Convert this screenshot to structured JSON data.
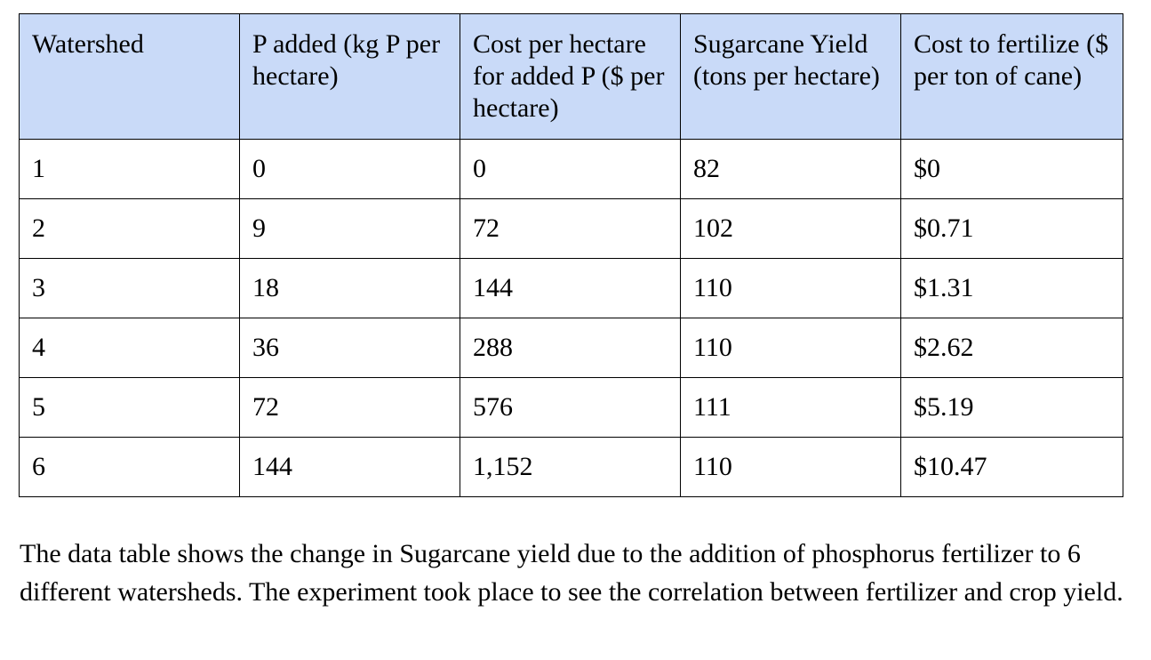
{
  "table": {
    "headers": [
      "Watershed",
      "P added (kg P per hectare)",
      "Cost per hectare for added P ($ per hectare)",
      "Sugarcane Yield (tons per hectare)",
      "Cost to fertilize ($ per ton of cane)"
    ],
    "rows": [
      [
        "1",
        "0",
        "0",
        "82",
        "$0"
      ],
      [
        "2",
        "9",
        "72",
        "102",
        "$0.71"
      ],
      [
        "3",
        "18",
        "144",
        "110",
        "$1.31"
      ],
      [
        "4",
        "36",
        "288",
        "110",
        "$2.62"
      ],
      [
        "5",
        "72",
        "576",
        "111",
        "$5.19"
      ],
      [
        "6",
        "144",
        "1,152",
        "110",
        "$10.47"
      ]
    ],
    "header_bg": "#c9daf8"
  },
  "caption": "The data table shows the change in Sugarcane yield due to the addition of phosphorus fertilizer to 6 different watersheds. The experiment took place to see the correlation between fertilizer and crop yield."
}
